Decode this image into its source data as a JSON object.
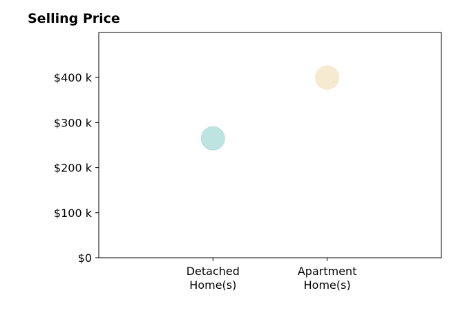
{
  "chart_data": {
    "type": "scatter",
    "title": "Selling Price",
    "xlabel": "",
    "ylabel": "",
    "categories": [
      "Detached\nHome(s)",
      "Apartment\nHome(s)"
    ],
    "values": [
      265000,
      400000
    ],
    "point_colors": [
      "#b2dfdb",
      "#f5e6c8"
    ],
    "ylim": [
      0,
      500000
    ],
    "yticks": [
      0,
      100000,
      200000,
      300000,
      400000
    ],
    "ytick_labels": [
      "$0",
      "$100 k",
      "$200 k",
      "$300 k",
      "$400 k"
    ],
    "grid": false,
    "legend": "none"
  }
}
